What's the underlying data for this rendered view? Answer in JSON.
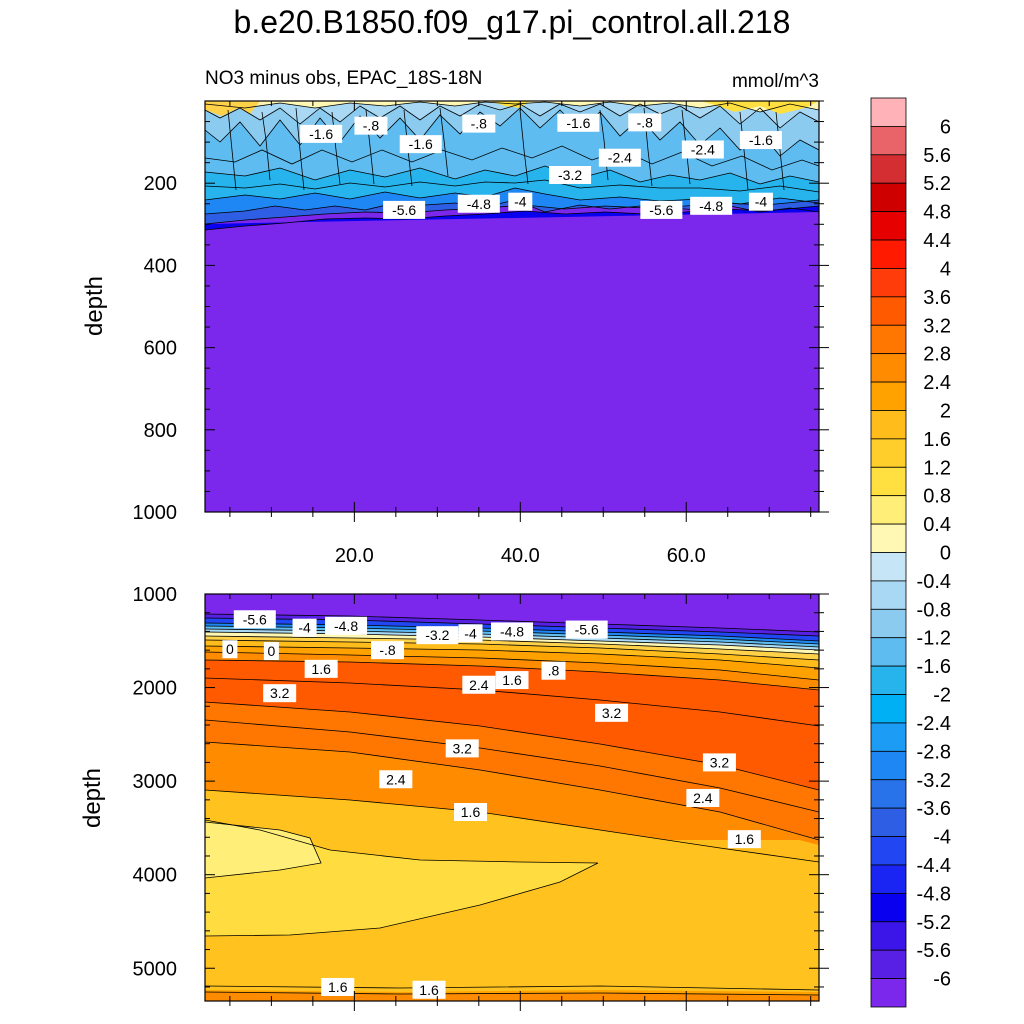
{
  "title": "b.e20.B1850.f09_g17.pi_control.all.218",
  "subtitle": "NO3 minus obs, EPAC_18S-18N",
  "units": "mmol/m^3",
  "chart_data": [
    {
      "type": "contour",
      "panel": "upper",
      "ylabel": "depth",
      "xlabel": "",
      "xlim": [
        2,
        76
      ],
      "ylim": [
        1000,
        0
      ],
      "xticks": [
        20,
        40,
        60
      ],
      "xtick_labels": [
        "20.0",
        "40.0",
        "60.0"
      ],
      "yticks": [
        200,
        400,
        600,
        800,
        1000
      ],
      "ytick_labels": [
        "200",
        "400",
        "600",
        "800",
        "1000"
      ],
      "contour_labels": [
        {
          "text": "-1.6",
          "x": 16,
          "y": 80
        },
        {
          "text": "-.8",
          "x": 22,
          "y": 60
        },
        {
          "text": "-1.6",
          "x": 28,
          "y": 105
        },
        {
          "text": "-.8",
          "x": 35,
          "y": 55
        },
        {
          "text": "-1.6",
          "x": 47,
          "y": 53
        },
        {
          "text": "-.8",
          "x": 55,
          "y": 52
        },
        {
          "text": "-2.4",
          "x": 52,
          "y": 138
        },
        {
          "text": "-2.4",
          "x": 62,
          "y": 118
        },
        {
          "text": "-1.6",
          "x": 69,
          "y": 95
        },
        {
          "text": "-3.2",
          "x": 46,
          "y": 180
        },
        {
          "text": "-5.6",
          "x": 26,
          "y": 265
        },
        {
          "text": "-4.8",
          "x": 35,
          "y": 250
        },
        {
          "text": "-4",
          "x": 40,
          "y": 245
        },
        {
          "text": "-5.6",
          "x": 57,
          "y": 265
        },
        {
          "text": "-4.8",
          "x": 63,
          "y": 255
        },
        {
          "text": "-4",
          "x": 69,
          "y": 245
        }
      ]
    },
    {
      "type": "contour",
      "panel": "lower",
      "ylabel": "depth",
      "xlabel": "",
      "xlim": [
        2,
        76
      ],
      "ylim": [
        5350,
        1000
      ],
      "yticks": [
        1000,
        2000,
        3000,
        4000,
        5000
      ],
      "ytick_labels": [
        "1000",
        "2000",
        "3000",
        "4000",
        "5000"
      ],
      "contour_labels": [
        {
          "text": "-5.6",
          "x": 8,
          "y": 1270
        },
        {
          "text": "-4",
          "x": 14,
          "y": 1360
        },
        {
          "text": "-4.8",
          "x": 19,
          "y": 1340
        },
        {
          "text": "-3.2",
          "x": 30,
          "y": 1440
        },
        {
          "text": "-4",
          "x": 34,
          "y": 1420
        },
        {
          "text": "-4.8",
          "x": 39,
          "y": 1400
        },
        {
          "text": "-5.6",
          "x": 48,
          "y": 1380
        },
        {
          "text": "0",
          "x": 5,
          "y": 1590
        },
        {
          "text": "0",
          "x": 10,
          "y": 1610
        },
        {
          "text": "-.8",
          "x": 24,
          "y": 1600
        },
        {
          "text": "1.6",
          "x": 16,
          "y": 1800
        },
        {
          "text": "1.6",
          "x": 39,
          "y": 1920
        },
        {
          "text": ".8",
          "x": 44,
          "y": 1820
        },
        {
          "text": "2.4",
          "x": 35,
          "y": 1970
        },
        {
          "text": "3.2",
          "x": 11,
          "y": 2060
        },
        {
          "text": "3.2",
          "x": 51,
          "y": 2270
        },
        {
          "text": "3.2",
          "x": 33,
          "y": 2650
        },
        {
          "text": "3.2",
          "x": 64,
          "y": 2800
        },
        {
          "text": "2.4",
          "x": 25,
          "y": 2980
        },
        {
          "text": "2.4",
          "x": 62,
          "y": 3180
        },
        {
          "text": "1.6",
          "x": 34,
          "y": 3330
        },
        {
          "text": "1.6",
          "x": 67,
          "y": 3620
        },
        {
          "text": "1.6",
          "x": 18,
          "y": 5200
        },
        {
          "text": "1.6",
          "x": 29,
          "y": 5230
        }
      ]
    },
    {
      "type": "colorbar",
      "levels": [
        "6",
        "5.6",
        "5.2",
        "4.8",
        "4.4",
        "4",
        "3.6",
        "3.2",
        "2.8",
        "2.4",
        "2",
        "1.6",
        "1.2",
        "0.8",
        "0.4",
        "0",
        "-0.4",
        "-0.8",
        "-1.2",
        "-1.6",
        "-2",
        "-2.4",
        "-2.8",
        "-3.2",
        "-3.6",
        "-4",
        "-4.4",
        "-4.8",
        "-5.2",
        "-5.6",
        "-6"
      ],
      "colors": [
        "#ffb3b8",
        "#e86468",
        "#d42d32",
        "#cf0000",
        "#e60000",
        "#ff1a00",
        "#ff3c0a",
        "#ff5a00",
        "#ff7600",
        "#ff8c00",
        "#ffa200",
        "#ffbc1a",
        "#ffce2b",
        "#ffe040",
        "#ffee78",
        "#fff8b4",
        "#c6e6f8",
        "#a8d8f3",
        "#8ccbf0",
        "#5ebcf0",
        "#27b4ec",
        "#00b0f5",
        "#1c9cf5",
        "#1f87f4",
        "#2872ea",
        "#2e5ee4",
        "#2246f1",
        "#1a25f4",
        "#0a00f0",
        "#3c16e8",
        "#5820e4",
        "#7b28ec"
      ]
    }
  ]
}
